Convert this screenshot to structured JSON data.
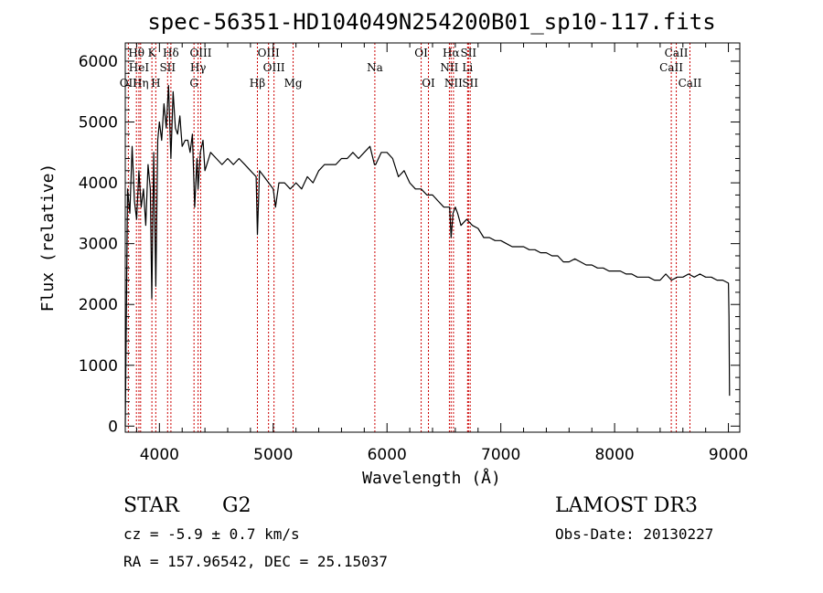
{
  "chart_data": {
    "type": "line",
    "title": "spec-56351-HD104049N254200B01_sp10-117.fits",
    "xlabel": "Wavelength (Å)",
    "ylabel": "Flux (relative)",
    "xlim": [
      3700,
      9100
    ],
    "ylim": [
      -100,
      6300
    ],
    "xticks": [
      4000,
      5000,
      6000,
      7000,
      8000,
      9000
    ],
    "yticks": [
      0,
      1000,
      2000,
      3000,
      4000,
      5000,
      6000
    ],
    "series": [
      {
        "name": "flux",
        "x": [
          3700,
          3720,
          3740,
          3760,
          3780,
          3800,
          3820,
          3840,
          3860,
          3880,
          3900,
          3920,
          3933,
          3950,
          3968,
          3985,
          4000,
          4020,
          4040,
          4060,
          4080,
          4101,
          4120,
          4140,
          4160,
          4180,
          4200,
          4226,
          4250,
          4270,
          4290,
          4310,
          4330,
          4340,
          4360,
          4383,
          4400,
          4450,
          4500,
          4550,
          4600,
          4650,
          4700,
          4750,
          4800,
          4850,
          4861,
          4880,
          4920,
          4960,
          5000,
          5020,
          5050,
          5100,
          5150,
          5200,
          5250,
          5300,
          5350,
          5400,
          5450,
          5500,
          5550,
          5600,
          5650,
          5700,
          5750,
          5800,
          5850,
          5890,
          5900,
          5950,
          6000,
          6050,
          6100,
          6150,
          6200,
          6250,
          6300,
          6350,
          6400,
          6450,
          6500,
          6550,
          6563,
          6580,
          6600,
          6620,
          6650,
          6700,
          6750,
          6800,
          6850,
          6900,
          6950,
          7000,
          7050,
          7100,
          7150,
          7200,
          7250,
          7300,
          7350,
          7400,
          7450,
          7500,
          7550,
          7600,
          7650,
          7700,
          7750,
          7800,
          7850,
          7900,
          7950,
          8000,
          8050,
          8100,
          8150,
          8200,
          8250,
          8300,
          8350,
          8400,
          8450,
          8500,
          8550,
          8600,
          8650,
          8700,
          8750,
          8800,
          8850,
          8900,
          8950,
          9000,
          9005,
          9010
        ],
        "y": [
          0,
          3900,
          3500,
          4600,
          3700,
          3400,
          4200,
          3600,
          3900,
          3300,
          4300,
          3900,
          2100,
          4500,
          2300,
          4700,
          5000,
          4700,
          5300,
          4900,
          5600,
          4400,
          5500,
          4900,
          4800,
          5100,
          4600,
          4700,
          4700,
          4500,
          4800,
          3600,
          4400,
          3900,
          4500,
          4700,
          4200,
          4500,
          4400,
          4300,
          4400,
          4300,
          4400,
          4300,
          4200,
          4100,
          3150,
          4200,
          4100,
          4000,
          3900,
          3600,
          4000,
          4000,
          3900,
          4000,
          3900,
          4100,
          4000,
          4200,
          4300,
          4300,
          4300,
          4400,
          4400,
          4500,
          4400,
          4500,
          4600,
          4300,
          4300,
          4500,
          4500,
          4400,
          4100,
          4200,
          4000,
          3900,
          3900,
          3800,
          3800,
          3700,
          3600,
          3600,
          3100,
          3500,
          3600,
          3500,
          3300,
          3400,
          3300,
          3250,
          3100,
          3100,
          3050,
          3050,
          3000,
          2950,
          2950,
          2950,
          2900,
          2900,
          2850,
          2850,
          2800,
          2800,
          2700,
          2700,
          2750,
          2700,
          2650,
          2650,
          2600,
          2600,
          2550,
          2550,
          2550,
          2500,
          2500,
          2450,
          2450,
          2450,
          2400,
          2400,
          2500,
          2400,
          2450,
          2450,
          2500,
          2450,
          2500,
          2450,
          2450,
          2400,
          2400,
          2350,
          1800,
          500
        ]
      }
    ],
    "spectral_lines": [
      {
        "label": "OII",
        "wavelength": 3727,
        "row": 2
      },
      {
        "label": "Hθ",
        "wavelength": 3798,
        "row": 0
      },
      {
        "label": "HeI",
        "wavelength": 3820,
        "row": 1
      },
      {
        "label": "Hη",
        "wavelength": 3835,
        "row": 2
      },
      {
        "label": "K",
        "wavelength": 3934,
        "row": 0
      },
      {
        "label": "SII",
        "wavelength": 4072,
        "row": 1
      },
      {
        "label": "H",
        "wavelength": 3968,
        "row": 2
      },
      {
        "label": "Hδ",
        "wavelength": 4101,
        "row": 0
      },
      {
        "label": "OIII",
        "wavelength": 4363,
        "row": 0
      },
      {
        "label": "Hγ",
        "wavelength": 4340,
        "row": 1
      },
      {
        "label": "G",
        "wavelength": 4304,
        "row": 2
      },
      {
        "label": "Hβ",
        "wavelength": 4861,
        "row": 2
      },
      {
        "label": "OIII",
        "wavelength": 4959,
        "row": 0
      },
      {
        "label": "OIII",
        "wavelength": 5007,
        "row": 1
      },
      {
        "label": "Mg",
        "wavelength": 5175,
        "row": 2
      },
      {
        "label": "Na",
        "wavelength": 5893,
        "row": 1
      },
      {
        "label": "OI",
        "wavelength": 6300,
        "row": 0
      },
      {
        "label": "OI",
        "wavelength": 6364,
        "row": 2
      },
      {
        "label": "Hα",
        "wavelength": 6563,
        "row": 0
      },
      {
        "label": "NII",
        "wavelength": 6548,
        "row": 1
      },
      {
        "label": "NII",
        "wavelength": 6584,
        "row": 2
      },
      {
        "label": "SII",
        "wavelength": 6716,
        "row": 0
      },
      {
        "label": "Li",
        "wavelength": 6708,
        "row": 1
      },
      {
        "label": "SII",
        "wavelength": 6731,
        "row": 2
      },
      {
        "label": "CaII",
        "wavelength": 8542,
        "row": 0
      },
      {
        "label": "CaII",
        "wavelength": 8498,
        "row": 1
      },
      {
        "label": "CaII",
        "wavelength": 8662,
        "row": 2
      }
    ],
    "line_color": "#000000",
    "marker_color": "#cc0000"
  },
  "info": {
    "class": "STAR",
    "subclass": "G2",
    "survey": "LAMOST DR3",
    "cz": "cz = -5.9 ± 0.7 km/s",
    "obs_date": "Obs-Date: 20130227",
    "coords": "RA = 157.96542, DEC =  25.15037"
  }
}
